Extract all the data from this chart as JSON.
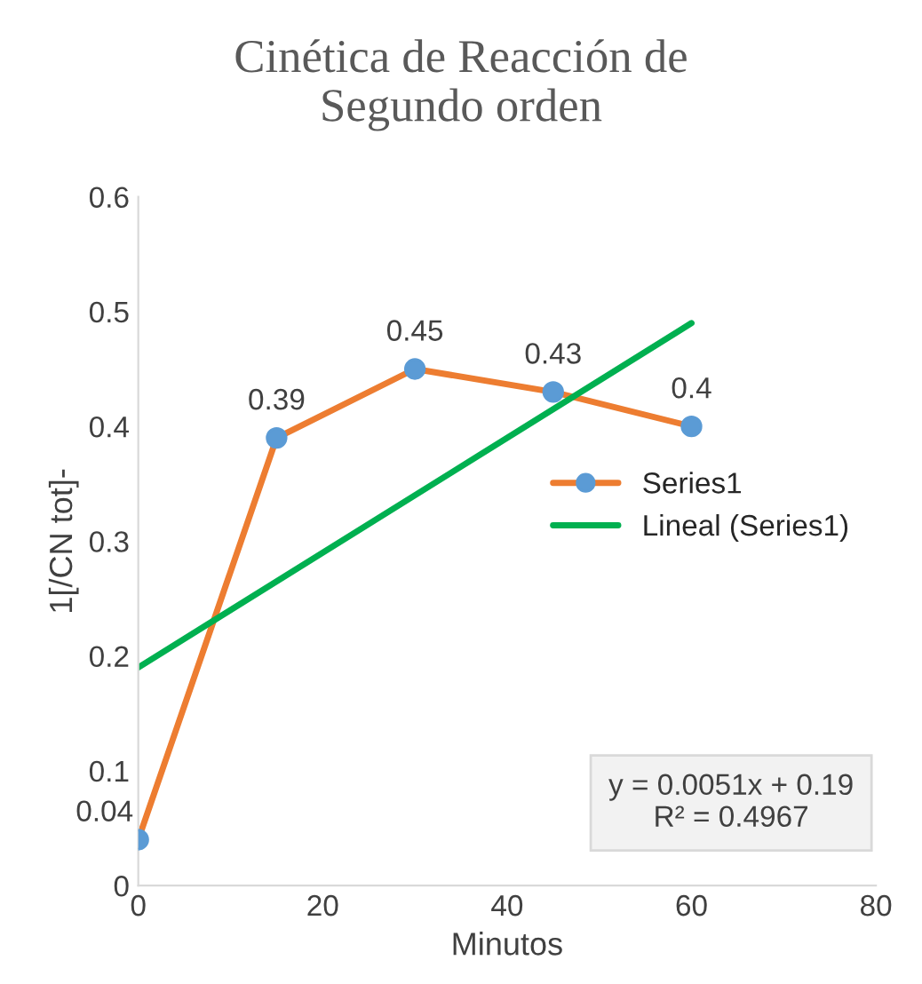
{
  "chart_data": {
    "type": "line",
    "title": "Cinética de Reacción de\nSegundo orden",
    "xlabel": "Minutos",
    "ylabel": "1[/CN tot]-",
    "x": [
      0,
      15,
      30,
      45,
      60
    ],
    "series": [
      {
        "name": "Series1",
        "color": "#ed7d31",
        "colors": [
          "#5b9bd5",
          "#5b9bd5",
          "#5b9bd5",
          "#5b9bd5",
          "#5b9bd5"
        ],
        "marker": "circle",
        "values": [
          0.04,
          0.39,
          0.45,
          0.43,
          0.4
        ],
        "value_labels": [
          "0.04",
          "0.39",
          "0.45",
          "0.43",
          "0.4"
        ]
      },
      {
        "name": "Lineal (Series1)",
        "color": "#00b050",
        "x": [
          0,
          60
        ],
        "values": [
          0.19,
          0.49
        ]
      }
    ],
    "xlim": [
      0,
      80
    ],
    "xticks": [
      0,
      20,
      40,
      60,
      80
    ],
    "ylim": [
      0,
      0.6
    ],
    "yticks": [
      0,
      0.1,
      0.2,
      0.3,
      0.4,
      0.5,
      0.6
    ],
    "grid": false,
    "legend": "right",
    "annotations": [
      "y = 0.0051x + 0.19\nR² = 0.4967"
    ]
  }
}
